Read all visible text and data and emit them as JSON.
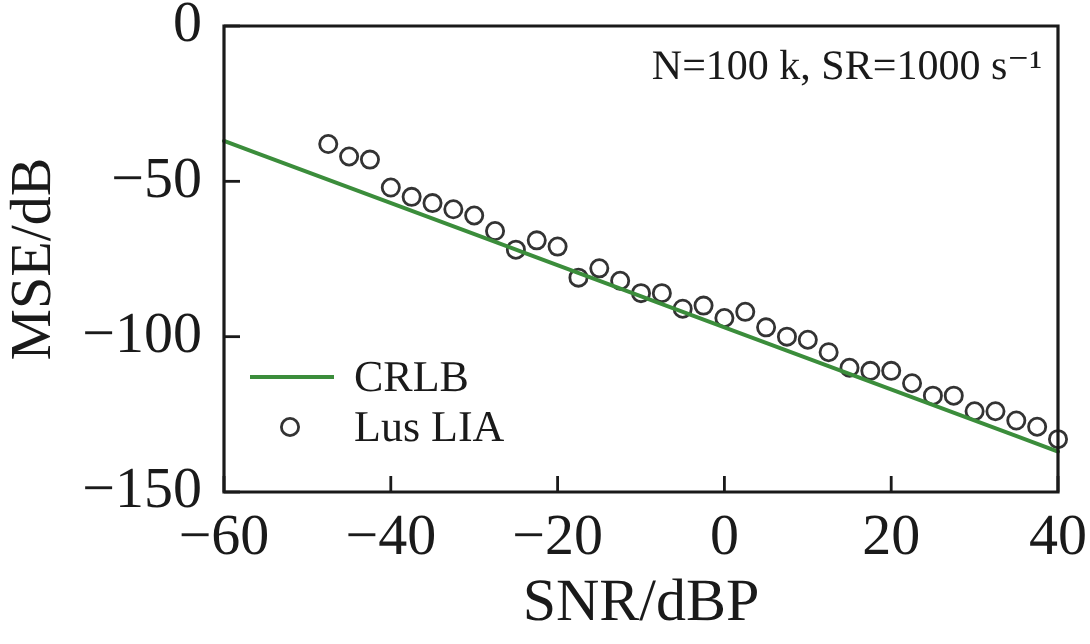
{
  "chart_data": {
    "type": "scatter",
    "xlabel": "SNR/dBP",
    "ylabel": "MSE/dB",
    "annotations": [
      "N=100 k, SR=1000 s⁻¹"
    ],
    "xlim": [
      -60,
      40
    ],
    "xticks": [
      -60,
      -40,
      -20,
      0,
      20,
      40
    ],
    "ylim": [
      -150,
      0
    ],
    "yticks": [
      -150,
      -100,
      -50,
      0
    ],
    "legend": "bottom left",
    "series": [
      {
        "name": "CRLB",
        "type": "line",
        "color": "#3b8d3b",
        "x": [
          -60,
          40
        ],
        "values": [
          -37,
          -137
        ],
        "line_style": "solid"
      },
      {
        "name": "Lus LIA",
        "color": "#333333",
        "marker": "circle",
        "x": [
          -47.5,
          -45,
          -42.5,
          -40,
          -37.5,
          -35,
          -32.5,
          -30,
          -27.5,
          -25,
          -22.5,
          -20,
          -17.5,
          -15,
          -12.5,
          -10,
          -7.5,
          -5,
          -2.5,
          0,
          2.5,
          5,
          7.5,
          10,
          12.5,
          15,
          17.5,
          20,
          22.5,
          25,
          27.5,
          30,
          32.5,
          35,
          37.5,
          40
        ],
        "values": [
          -38,
          -42,
          -43,
          -52,
          -55,
          -57,
          -59,
          -61,
          -66,
          -72,
          -69,
          -71,
          -81,
          -78,
          -82,
          -86,
          -86,
          -91,
          -90,
          -94,
          -92,
          -97,
          -100,
          -101,
          -105,
          -110,
          -111,
          -111,
          -115,
          -119,
          -119,
          -124,
          -124,
          -127,
          -129,
          -133
        ]
      }
    ]
  }
}
